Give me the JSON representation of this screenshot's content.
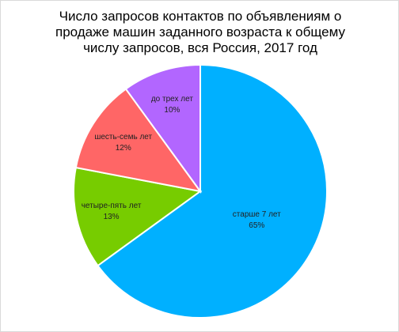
{
  "chart_data": {
    "type": "pie",
    "title": "Число запросов контактов по объявлениям о продаже машин заданного возраста к общему числу запросов, вся Россия, 2017 год",
    "categories": [
      "старше 7 лет",
      "четыре-пять лет",
      "шесть-семь лет",
      "до трех лет"
    ],
    "values": [
      65,
      13,
      12,
      10
    ],
    "value_labels": [
      "65%",
      "13%",
      "12%",
      "10%"
    ],
    "colors": [
      "#00b0ff",
      "#77cc00",
      "#ff6666",
      "#b266ff"
    ]
  }
}
